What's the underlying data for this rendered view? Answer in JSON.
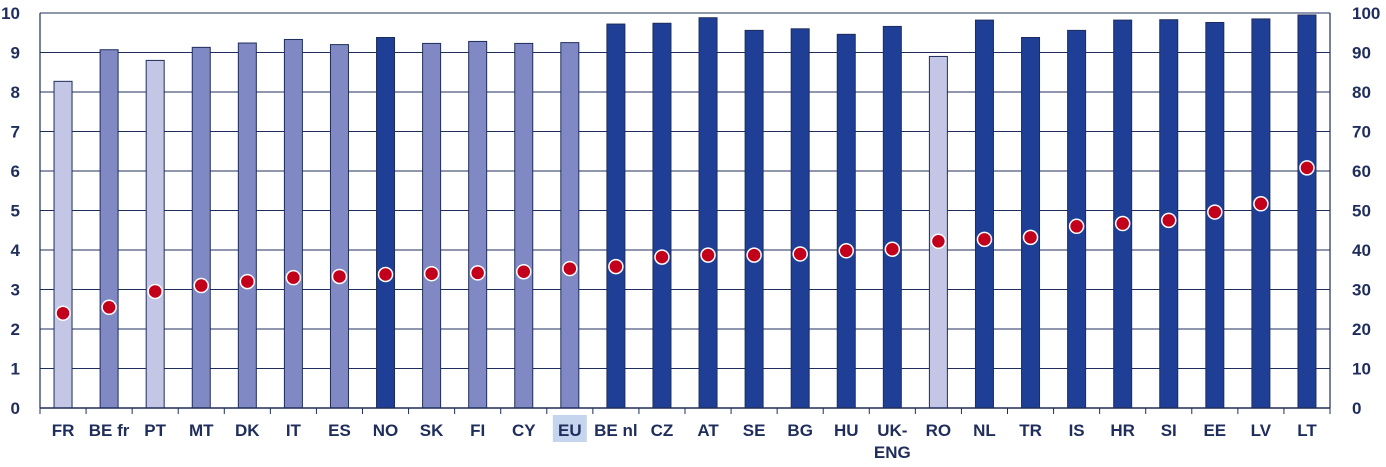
{
  "chart_data": {
    "type": "bar",
    "categories": [
      "FR",
      "BE fr",
      "PT",
      "MT",
      "DK",
      "IT",
      "ES",
      "NO",
      "SK",
      "FI",
      "CY",
      "EU",
      "BE nl",
      "CZ",
      "AT",
      "SE",
      "BG",
      "HU",
      "UK-ENG",
      "RO",
      "NL",
      "TR",
      "IS",
      "HR",
      "SI",
      "EE",
      "LV",
      "LT"
    ],
    "category_lines": [
      [
        "FR"
      ],
      [
        "BE fr"
      ],
      [
        "PT"
      ],
      [
        "MT"
      ],
      [
        "DK"
      ],
      [
        "IT"
      ],
      [
        "ES"
      ],
      [
        "NO"
      ],
      [
        "SK"
      ],
      [
        "FI"
      ],
      [
        "CY"
      ],
      [
        "EU"
      ],
      [
        "BE nl"
      ],
      [
        "CZ"
      ],
      [
        "AT"
      ],
      [
        "SE"
      ],
      [
        "BG"
      ],
      [
        "HU"
      ],
      [
        "UK-",
        "ENG"
      ],
      [
        "RO"
      ],
      [
        "NL"
      ],
      [
        "TR"
      ],
      [
        "IS"
      ],
      [
        "HR"
      ],
      [
        "SI"
      ],
      [
        "EE"
      ],
      [
        "LV"
      ],
      [
        "LT"
      ]
    ],
    "highlighted_category": "EU",
    "series": [
      {
        "type": "bar",
        "axis": "left",
        "values": [
          8.27,
          9.07,
          8.8,
          9.13,
          9.24,
          9.33,
          9.2,
          9.38,
          9.23,
          9.28,
          9.23,
          9.25,
          9.72,
          9.74,
          9.88,
          9.56,
          9.6,
          9.46,
          9.66,
          8.9,
          9.82,
          9.38,
          9.56,
          9.82,
          9.83,
          9.76,
          9.85,
          9.95
        ],
        "color_groups": [
          1,
          2,
          1,
          2,
          2,
          2,
          2,
          3,
          2,
          2,
          2,
          2,
          3,
          3,
          3,
          3,
          3,
          3,
          3,
          1,
          3,
          3,
          3,
          3,
          3,
          3,
          3,
          3
        ]
      },
      {
        "type": "scatter",
        "axis": "right",
        "values": [
          24,
          25.5,
          29.5,
          31,
          32,
          33,
          33.3,
          33.8,
          34,
          34.2,
          34.5,
          35.3,
          35.8,
          38.2,
          38.7,
          38.7,
          39,
          39.8,
          40.2,
          42.2,
          42.7,
          43.2,
          46,
          46.7,
          47.5,
          49.6,
          51.7,
          60.8
        ]
      }
    ],
    "ylim": [
      0,
      10
    ],
    "y2lim": [
      0,
      100
    ],
    "yticks": [
      "0",
      "1",
      "2",
      "3",
      "4",
      "5",
      "6",
      "7",
      "8",
      "9",
      "10"
    ],
    "y2ticks": [
      "0",
      "10",
      "20",
      "30",
      "40",
      "50",
      "60",
      "70",
      "80",
      "90",
      "100"
    ],
    "grid": true,
    "colors": {
      "group1": "#c3c6e5",
      "group2": "#8189c4",
      "group3": "#1f3f96",
      "marker_fill": "#c2001b",
      "marker_stroke": "#ffffff",
      "grid": "#1f2d5c",
      "text": "#1f2d5c",
      "highlight_bg": "#c5d5ee"
    }
  }
}
